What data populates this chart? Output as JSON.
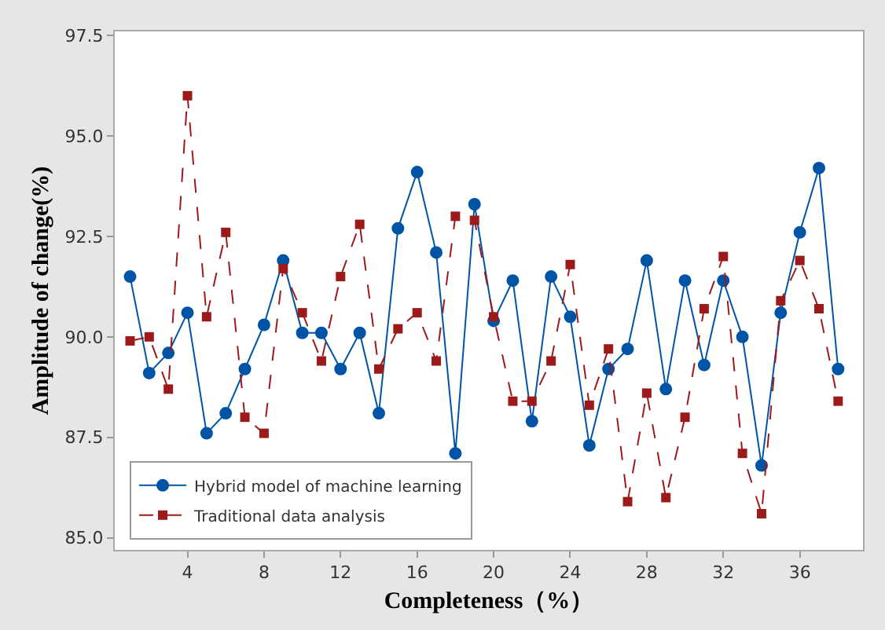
{
  "chart_data": {
    "type": "line",
    "xlabel": "Completeness（%）",
    "ylabel": "Amplitude of change(%)",
    "x": [
      1,
      2,
      3,
      4,
      5,
      6,
      7,
      8,
      9,
      10,
      11,
      12,
      13,
      14,
      15,
      16,
      17,
      18,
      19,
      20,
      21,
      22,
      23,
      24,
      25,
      26,
      27,
      28,
      29,
      30,
      31,
      32,
      33,
      34,
      35,
      36,
      37,
      38
    ],
    "xlim": [
      0.2,
      39.3
    ],
    "xticks": [
      4,
      8,
      12,
      16,
      20,
      24,
      28,
      32,
      36
    ],
    "ylim": [
      84.7,
      97.6
    ],
    "yticks": [
      {
        "value": 85,
        "label": "85.0"
      },
      {
        "value": 87.5,
        "label": "87.5"
      },
      {
        "value": 90,
        "label": "90.0"
      },
      {
        "value": 92.5,
        "label": "92.5"
      },
      {
        "value": 95,
        "label": "95.0"
      },
      {
        "value": 97.5,
        "label": "97.5"
      }
    ],
    "grid": false,
    "legend": "bottom left",
    "series": [
      {
        "name": "Hybrid model of machine learning",
        "color": "#0054a6",
        "marker": "circle",
        "line_style": "solid",
        "values": [
          91.5,
          89.1,
          89.6,
          90.6,
          87.6,
          88.1,
          89.2,
          90.3,
          91.9,
          90.1,
          90.1,
          89.2,
          90.1,
          88.1,
          92.7,
          94.1,
          92.1,
          87.1,
          93.3,
          90.4,
          91.4,
          87.9,
          91.5,
          90.5,
          87.3,
          89.2,
          89.7,
          91.9,
          88.7,
          91.4,
          89.3,
          91.4,
          90.0,
          86.8,
          90.6,
          92.6,
          94.2,
          89.2
        ]
      },
      {
        "name": "Traditional data analysis",
        "color": "#9c1a1a",
        "marker": "square",
        "line_style": "dashed",
        "values": [
          89.9,
          90.0,
          88.7,
          96.0,
          90.5,
          92.6,
          88.0,
          87.6,
          91.7,
          90.6,
          89.4,
          91.5,
          92.8,
          89.2,
          90.2,
          90.6,
          89.4,
          93.0,
          92.9,
          90.5,
          88.4,
          88.4,
          89.4,
          91.8,
          88.3,
          89.7,
          85.9,
          88.6,
          86.0,
          88.0,
          90.7,
          92.0,
          87.1,
          85.6,
          90.9,
          91.9,
          90.7,
          88.4
        ]
      }
    ]
  }
}
